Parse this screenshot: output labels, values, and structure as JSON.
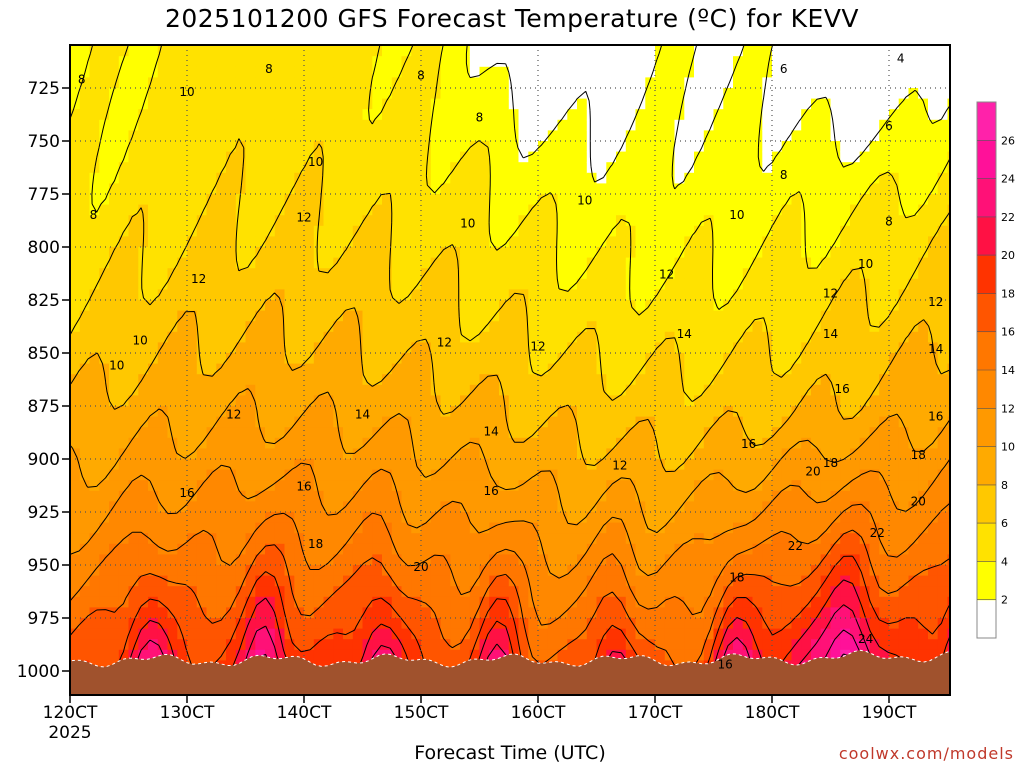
{
  "chart_data": {
    "type": "heatmap",
    "title": "2025101200 GFS Forecast Temperature (ºC) for KEVV",
    "xlabel": "Forecast Time (UTC)",
    "credit": "coolwx.com/models",
    "x_ticks": [
      "120CT",
      "130CT",
      "140CT",
      "150CT",
      "160CT",
      "170CT",
      "180CT",
      "190CT"
    ],
    "x_year": "2025",
    "y_ticks": [
      "725",
      "750",
      "775",
      "800",
      "825",
      "850",
      "875",
      "900",
      "925",
      "950",
      "975",
      "1000"
    ],
    "colorbar": {
      "levels": [
        "2",
        "4",
        "6",
        "8",
        "10",
        "12",
        "14",
        "16",
        "18",
        "20",
        "22",
        "24",
        "26"
      ],
      "colors": [
        "#ffffff",
        "#ffff00",
        "#ffe200",
        "#ffc800",
        "#ffaa00",
        "#ff9900",
        "#ff8800",
        "#ff7700",
        "#ff5500",
        "#ff3300",
        "#ff1144",
        "#ff1177",
        "#ff1199",
        "#ff22aa"
      ]
    },
    "contour_labels": [
      {
        "text": "8",
        "day": 12.1,
        "p": 721
      },
      {
        "text": "8",
        "day": 13.7,
        "p": 716
      },
      {
        "text": "8",
        "day": 15.0,
        "p": 719
      },
      {
        "text": "8",
        "day": 15.5,
        "p": 739
      },
      {
        "text": "6",
        "day": 18.1,
        "p": 716
      },
      {
        "text": "4",
        "day": 19.1,
        "p": 711
      },
      {
        "text": "6",
        "day": 19.0,
        "p": 743
      },
      {
        "text": "8",
        "day": 18.1,
        "p": 766
      },
      {
        "text": "8",
        "day": 19.0,
        "p": 788
      },
      {
        "text": "10",
        "day": 13.0,
        "p": 727
      },
      {
        "text": "10",
        "day": 14.1,
        "p": 760
      },
      {
        "text": "10",
        "day": 15.4,
        "p": 789
      },
      {
        "text": "10",
        "day": 16.4,
        "p": 778
      },
      {
        "text": "10",
        "day": 17.7,
        "p": 785
      },
      {
        "text": "10",
        "day": 18.8,
        "p": 808
      },
      {
        "text": "8",
        "day": 12.2,
        "p": 785
      },
      {
        "text": "12",
        "day": 14.0,
        "p": 786
      },
      {
        "text": "12",
        "day": 13.1,
        "p": 815
      },
      {
        "text": "12",
        "day": 15.2,
        "p": 845
      },
      {
        "text": "12",
        "day": 16.0,
        "p": 847
      },
      {
        "text": "12",
        "day": 17.1,
        "p": 813
      },
      {
        "text": "12",
        "day": 18.5,
        "p": 822
      },
      {
        "text": "12",
        "day": 19.4,
        "p": 826
      },
      {
        "text": "10",
        "day": 12.6,
        "p": 844
      },
      {
        "text": "10",
        "day": 12.4,
        "p": 856
      },
      {
        "text": "12",
        "day": 13.4,
        "p": 879
      },
      {
        "text": "14",
        "day": 14.5,
        "p": 879
      },
      {
        "text": "14",
        "day": 15.6,
        "p": 887
      },
      {
        "text": "14",
        "day": 17.25,
        "p": 841
      },
      {
        "text": "14",
        "day": 18.5,
        "p": 841
      },
      {
        "text": "14",
        "day": 19.4,
        "p": 848
      },
      {
        "text": "16",
        "day": 18.6,
        "p": 867
      },
      {
        "text": "16",
        "day": 19.4,
        "p": 880
      },
      {
        "text": "16",
        "day": 17.8,
        "p": 893
      },
      {
        "text": "18",
        "day": 19.25,
        "p": 898
      },
      {
        "text": "18",
        "day": 18.5,
        "p": 902
      },
      {
        "text": "12",
        "day": 16.7,
        "p": 903
      },
      {
        "text": "16",
        "day": 13.0,
        "p": 916
      },
      {
        "text": "16",
        "day": 14.0,
        "p": 913
      },
      {
        "text": "16",
        "day": 15.6,
        "p": 915
      },
      {
        "text": "18",
        "day": 14.1,
        "p": 940
      },
      {
        "text": "20",
        "day": 15.0,
        "p": 951
      },
      {
        "text": "20",
        "day": 18.35,
        "p": 906
      },
      {
        "text": "20",
        "day": 19.25,
        "p": 920
      },
      {
        "text": "22",
        "day": 18.2,
        "p": 941
      },
      {
        "text": "22",
        "day": 18.9,
        "p": 935
      },
      {
        "text": "18",
        "day": 17.7,
        "p": 956
      },
      {
        "text": "24",
        "day": 18.8,
        "p": 985
      },
      {
        "text": "16",
        "day": 17.6,
        "p": 997
      }
    ]
  }
}
